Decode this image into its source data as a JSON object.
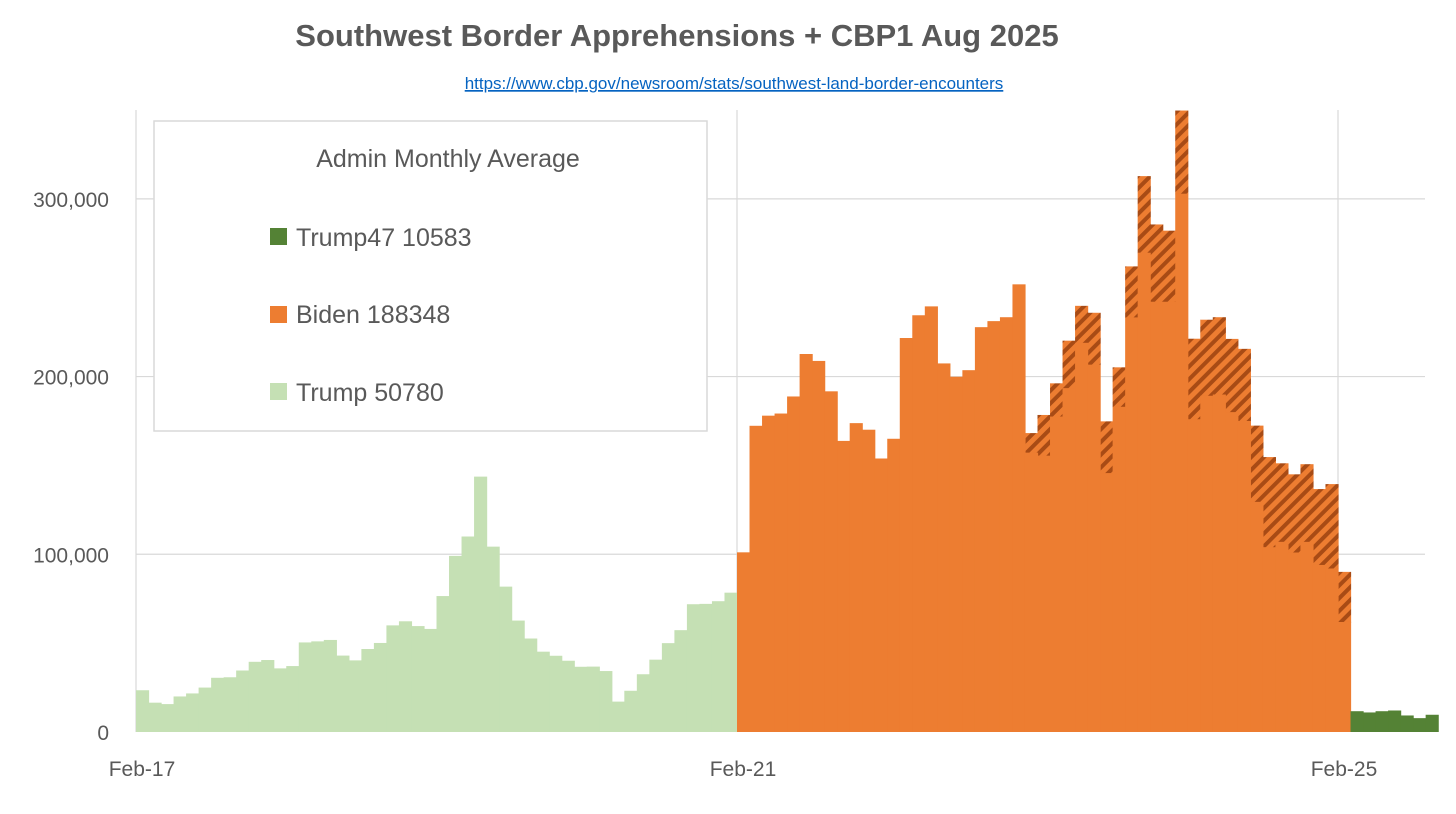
{
  "page": {
    "title": "Southwest Border Apprehensions + CBP1 Aug 2025",
    "source_link": "https://www.cbp.gov/newsroom/stats/southwest-land-border-encounters"
  },
  "legend": {
    "title": "Admin Monthly Average",
    "entries": [
      {
        "label": "Trump47 10583",
        "color": "#548235"
      },
      {
        "label": "Biden 188348",
        "color": "#ed7d31"
      },
      {
        "label": "Trump 50780",
        "color": "#c5e0b4"
      }
    ],
    "placement": "top-left"
  },
  "colors": {
    "trump": "#c5e0b4",
    "biden": "#ed7d31",
    "biden_hatch": "#a84b15",
    "trump47": "#548235",
    "gridline": "#d9d9d9",
    "text": "#595959"
  },
  "chart_data": {
    "type": "area",
    "title": "Southwest Border Apprehensions + CBP1 Aug 2025",
    "xlabel": "",
    "ylabel": "",
    "start_month": "Feb-17",
    "x_tick_labels": [
      "Feb-17",
      "Feb-21",
      "Feb-25"
    ],
    "y_tick_labels": [
      "0",
      "100,000",
      "200,000",
      "300,000"
    ],
    "y_ticks": [
      0,
      100000,
      200000,
      300000
    ],
    "ylim": [
      0,
      350000
    ],
    "grid": true,
    "series": [
      {
        "name": "Trump 50780",
        "color": "#c5e0b4",
        "values": [
          23500,
          16500,
          15700,
          20000,
          21700,
          25000,
          30500,
          30800,
          34600,
          39500,
          40500,
          35800,
          37100,
          50400,
          51000,
          51800,
          43000,
          40300,
          46700,
          50100,
          60000,
          62300,
          59600,
          58000,
          76500,
          99100,
          110000,
          143700,
          104300,
          81800,
          62700,
          52600,
          45200,
          42900,
          40100,
          36700,
          36800,
          34300,
          17100,
          23200,
          32500,
          40700,
          50000,
          57300,
          71900,
          72100,
          73600,
          78400
        ]
      },
      {
        "name": "Biden 188348",
        "color": "#ed7d31",
        "values": [
          101100,
          172300,
          178000,
          179200,
          188800,
          212700,
          208800,
          191700,
          163800,
          173800,
          170100,
          153900,
          165000,
          221700,
          234500,
          239500,
          207400,
          199900,
          203600,
          227800,
          231200,
          233400,
          251900,
          157200,
          155500,
          177500,
          193500,
          219000,
          206700,
          145700,
          183000,
          233300,
          269700,
          242100,
          242100,
          302900,
          176000,
          189200,
          189900,
          180000,
          175000,
          129500,
          104000,
          107000,
          101000,
          107000,
          94000,
          92000,
          61900
        ],
        "with_cbp1": [
          101100,
          172300,
          178000,
          179200,
          188800,
          212700,
          208800,
          191700,
          163800,
          173800,
          170100,
          153900,
          165000,
          221700,
          234500,
          239500,
          207400,
          199900,
          203600,
          227800,
          231200,
          233400,
          251900,
          168200,
          178400,
          196200,
          220200,
          239800,
          235900,
          174800,
          205200,
          262000,
          312800,
          285600,
          282100,
          349700,
          221300,
          232000,
          233400,
          221200,
          215600,
          172400,
          154700,
          151200,
          145000,
          150700,
          136700,
          139500,
          90100
        ]
      },
      {
        "name": "Trump47 10583",
        "color": "#548235",
        "values": [
          11700,
          11000,
          11700,
          12100,
          9300,
          7800,
          9700
        ]
      }
    ]
  }
}
